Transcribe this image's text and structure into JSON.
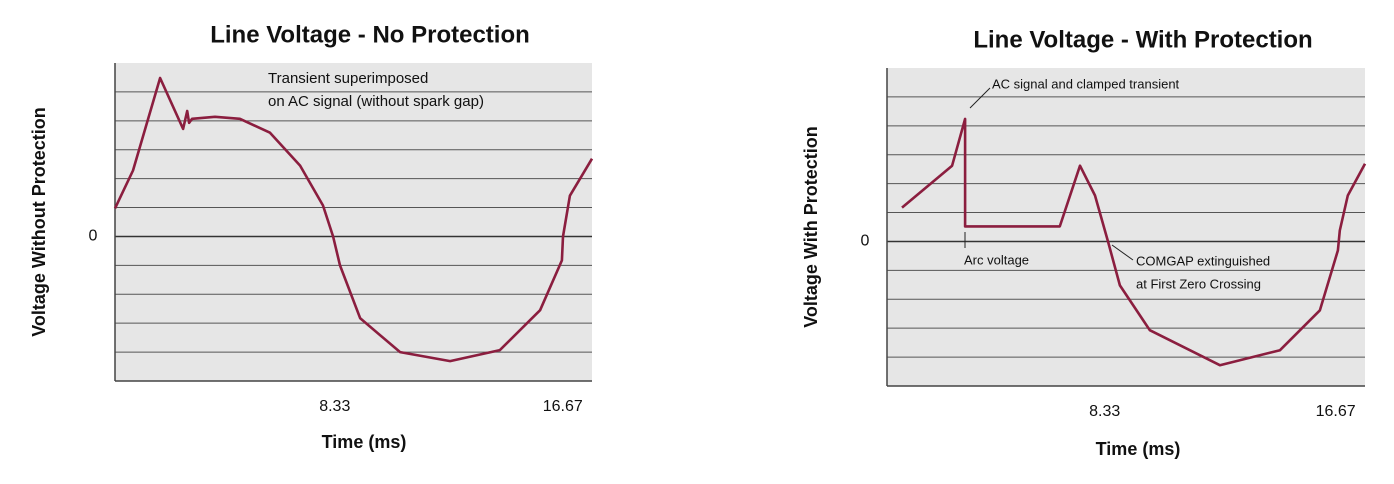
{
  "chart_data": [
    {
      "type": "line",
      "title": "Line Voltage - No Protection",
      "xlabel": "Time (ms)",
      "ylabel": "Voltage Without Protection",
      "x": [
        0.29,
        0.95,
        1.94,
        2.78,
        2.93,
        3.0,
        3.11,
        3.95,
        4.86,
        5.96,
        7.06,
        7.9,
        8.27,
        8.52,
        9.26,
        10.72,
        12.55,
        14.37,
        15.84,
        16.64,
        16.68,
        16.93,
        17.74
      ],
      "values": [
        0.97,
        2.28,
        5.48,
        3.72,
        4.34,
        3.93,
        4.07,
        4.14,
        4.07,
        3.59,
        2.45,
        1.07,
        0,
        -1,
        -2.83,
        -4.0,
        -4.31,
        -3.93,
        -2.55,
        -0.83,
        0,
        1.41,
        2.69
      ],
      "color": "#8b1e3f",
      "xlim": [
        0.29,
        17.74
      ],
      "xticks": [
        8.33,
        16.67
      ],
      "ylim": [
        -5,
        6
      ],
      "yticks": [
        0
      ],
      "grid": true,
      "annotations": [
        "Transient superimposed",
        "on AC signal (without spark gap)"
      ]
    },
    {
      "type": "line",
      "title": "Line Voltage - With Protection",
      "xlabel": "Time (ms)",
      "ylabel": "Voltage With Protection",
      "x": [
        1.01,
        2.82,
        3.29,
        3.29,
        6.71,
        7.44,
        7.98,
        8.45,
        8.88,
        9.96,
        12.49,
        14.66,
        16.1,
        16.75,
        16.82,
        17.11,
        17.73
      ],
      "values": [
        1.17,
        2.62,
        4.24,
        0.52,
        0.52,
        2.62,
        1.59,
        0,
        -1.52,
        -3.07,
        -4.28,
        -3.76,
        -2.38,
        -0.31,
        0.38,
        1.59,
        2.69
      ],
      "color": "#8b1e3f",
      "xlim": [
        0.47,
        17.73
      ],
      "xticks": [
        8.33,
        16.67
      ],
      "ylim": [
        -5,
        6
      ],
      "yticks": [
        0
      ],
      "grid": true,
      "annotations": [
        "AC signal and clamped transient",
        "Arc voltage",
        "COMGAP extinguished",
        "at First Zero Crossing"
      ]
    }
  ]
}
